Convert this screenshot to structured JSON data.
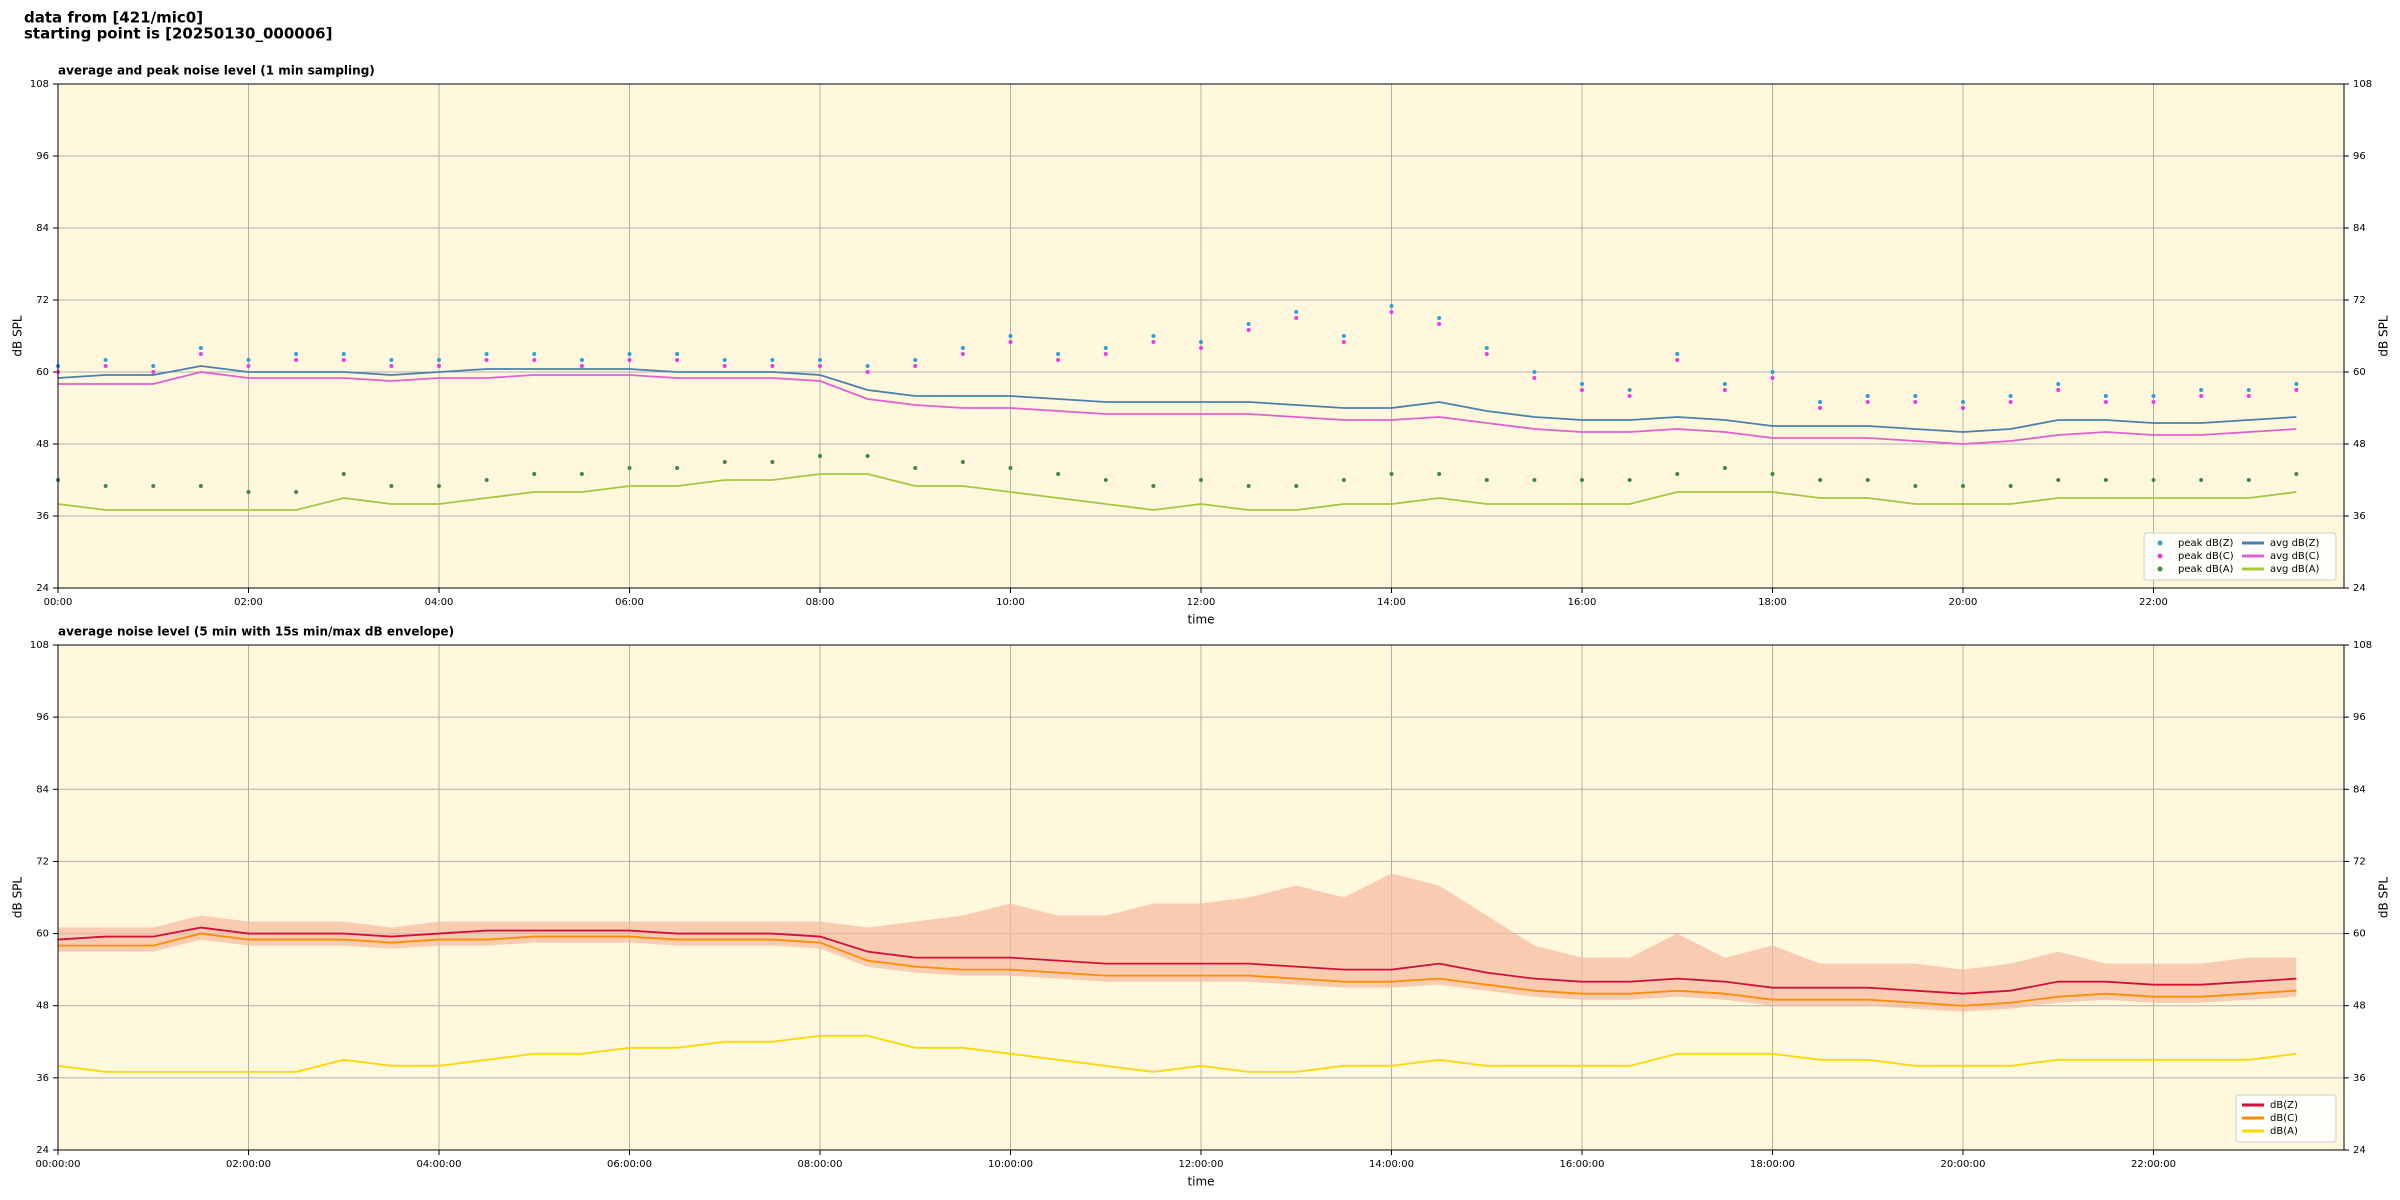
{
  "header": {
    "lines": [
      "data from [421/mic0]",
      "starting point is [20250130_000006]"
    ]
  },
  "chart_data": [
    {
      "type": "line",
      "title": "average and peak noise level (1 min sampling)",
      "xlabel": "time",
      "ylabel": "dB SPL",
      "background": "#fff8dc",
      "grid": true,
      "legend": "lower right",
      "legend_columns": 2,
      "xlim": [
        "00:00",
        "24:00"
      ],
      "xticks": [
        "00:00",
        "02:00",
        "04:00",
        "06:00",
        "08:00",
        "10:00",
        "12:00",
        "14:00",
        "16:00",
        "18:00",
        "20:00",
        "22:00"
      ],
      "ylim": [
        24,
        108
      ],
      "yticks": [
        24,
        36,
        48,
        60,
        72,
        84,
        96,
        108
      ],
      "x": [
        "00:00",
        "00:30",
        "01:00",
        "01:30",
        "02:00",
        "02:30",
        "03:00",
        "03:30",
        "04:00",
        "04:30",
        "05:00",
        "05:30",
        "06:00",
        "06:30",
        "07:00",
        "07:30",
        "08:00",
        "08:30",
        "09:00",
        "09:30",
        "10:00",
        "10:30",
        "11:00",
        "11:30",
        "12:00",
        "12:30",
        "13:00",
        "13:30",
        "14:00",
        "14:30",
        "15:00",
        "15:30",
        "16:00",
        "16:30",
        "17:00",
        "17:30",
        "18:00",
        "18:30",
        "19:00",
        "19:30",
        "20:00",
        "20:30",
        "21:00",
        "21:30",
        "22:00",
        "22:30",
        "23:00",
        "23:30"
      ],
      "series": [
        {
          "name": "peak dB(Z)",
          "kind": "scatter",
          "color": "#2e9fd8",
          "values": [
            61,
            62,
            61,
            64,
            62,
            63,
            63,
            62,
            62,
            63,
            63,
            62,
            63,
            63,
            62,
            62,
            62,
            61,
            62,
            64,
            66,
            63,
            64,
            66,
            65,
            68,
            70,
            66,
            71,
            69,
            64,
            60,
            58,
            57,
            63,
            58,
            60,
            55,
            56,
            56,
            55,
            56,
            58,
            56,
            56,
            57,
            57,
            58
          ]
        },
        {
          "name": "peak dB(C)",
          "kind": "scatter",
          "color": "#e83ee0",
          "values": [
            60,
            61,
            60,
            63,
            61,
            62,
            62,
            61,
            61,
            62,
            62,
            61,
            62,
            62,
            61,
            61,
            61,
            60,
            61,
            63,
            65,
            62,
            63,
            65,
            64,
            67,
            69,
            65,
            70,
            68,
            63,
            59,
            57,
            56,
            62,
            57,
            59,
            54,
            55,
            55,
            54,
            55,
            57,
            55,
            55,
            56,
            56,
            57
          ]
        },
        {
          "name": "peak dB(A)",
          "kind": "scatter",
          "color": "#3c8c3c",
          "values": [
            42,
            41,
            41,
            41,
            40,
            40,
            43,
            41,
            41,
            42,
            43,
            43,
            44,
            44,
            45,
            45,
            46,
            46,
            44,
            45,
            44,
            43,
            42,
            41,
            42,
            41,
            41,
            42,
            43,
            43,
            42,
            42,
            42,
            42,
            43,
            44,
            43,
            42,
            42,
            41,
            41,
            41,
            42,
            42,
            42,
            42,
            42,
            43
          ]
        },
        {
          "name": "avg dB(Z)",
          "kind": "line",
          "color": "#4a7fb0",
          "values": [
            59,
            59.5,
            59.5,
            61,
            60,
            60,
            60,
            59.5,
            60,
            60.5,
            60.5,
            60.5,
            60.5,
            60,
            60,
            60,
            59.5,
            57,
            56,
            56,
            56,
            55.5,
            55,
            55,
            55,
            55,
            54.5,
            54,
            54,
            55,
            53.5,
            52.5,
            52,
            52,
            52.5,
            52,
            51,
            51,
            51,
            50.5,
            50,
            50.5,
            52,
            52,
            51.5,
            51.5,
            52,
            52.5
          ]
        },
        {
          "name": "avg dB(C)",
          "kind": "line",
          "color": "#e060d0",
          "values": [
            58,
            58,
            58,
            60,
            59,
            59,
            59,
            58.5,
            59,
            59,
            59.5,
            59.5,
            59.5,
            59,
            59,
            59,
            58.5,
            55.5,
            54.5,
            54,
            54,
            53.5,
            53,
            53,
            53,
            53,
            52.5,
            52,
            52,
            52.5,
            51.5,
            50.5,
            50,
            50,
            50.5,
            50,
            49,
            49,
            49,
            48.5,
            48,
            48.5,
            49.5,
            50,
            49.5,
            49.5,
            50,
            50.5
          ]
        },
        {
          "name": "avg dB(A)",
          "kind": "line",
          "color": "#a4c93e",
          "values": [
            38,
            37,
            37,
            37,
            37,
            37,
            39,
            38,
            38,
            39,
            40,
            40,
            41,
            41,
            42,
            42,
            43,
            43,
            41,
            41,
            40,
            39,
            38,
            37,
            38,
            37,
            37,
            38,
            38,
            39,
            38,
            38,
            38,
            38,
            40,
            40,
            40,
            39,
            39,
            38,
            38,
            38,
            39,
            39,
            39,
            39,
            39,
            40
          ]
        }
      ]
    },
    {
      "type": "line",
      "title": "average noise level (5 min with 15s min/max dB envelope)",
      "xlabel": "time",
      "ylabel": "dB SPL",
      "background": "#fff8dc",
      "grid": true,
      "legend": "lower right",
      "legend_columns": 1,
      "xlim": [
        "00:00:00",
        "24:00:00"
      ],
      "xticks": [
        "00:00:00",
        "02:00:00",
        "04:00:00",
        "06:00:00",
        "08:00:00",
        "10:00:00",
        "12:00:00",
        "14:00:00",
        "16:00:00",
        "18:00:00",
        "20:00:00",
        "22:00:00"
      ],
      "ylim": [
        24,
        108
      ],
      "yticks": [
        24,
        36,
        48,
        60,
        72,
        84,
        96,
        108
      ],
      "x": [
        "00:00:00",
        "00:30:00",
        "01:00:00",
        "01:30:00",
        "02:00:00",
        "02:30:00",
        "03:00:00",
        "03:30:00",
        "04:00:00",
        "04:30:00",
        "05:00:00",
        "05:30:00",
        "06:00:00",
        "06:30:00",
        "07:00:00",
        "07:30:00",
        "08:00:00",
        "08:30:00",
        "09:00:00",
        "09:30:00",
        "10:00:00",
        "10:30:00",
        "11:00:00",
        "11:30:00",
        "12:00:00",
        "12:30:00",
        "13:00:00",
        "13:30:00",
        "14:00:00",
        "14:30:00",
        "15:00:00",
        "15:30:00",
        "16:00:00",
        "16:30:00",
        "17:00:00",
        "17:30:00",
        "18:00:00",
        "18:30:00",
        "19:00:00",
        "19:30:00",
        "20:00:00",
        "20:30:00",
        "21:00:00",
        "21:30:00",
        "22:00:00",
        "22:30:00",
        "23:00:00",
        "23:30:00"
      ],
      "envelope": {
        "color": "#f6b9a0",
        "upper": [
          61,
          61,
          61,
          63,
          62,
          62,
          62,
          61,
          62,
          62,
          62,
          62,
          62,
          62,
          62,
          62,
          62,
          61,
          62,
          63,
          65,
          63,
          63,
          65,
          65,
          66,
          68,
          66,
          70,
          68,
          63,
          58,
          56,
          56,
          60,
          56,
          58,
          55,
          55,
          55,
          54,
          55,
          57,
          55,
          55,
          55,
          56,
          56
        ],
        "lower": [
          57,
          57,
          57,
          59,
          58,
          58,
          58,
          57.5,
          58,
          58,
          58.5,
          58.5,
          58.5,
          58,
          58,
          58,
          57.5,
          54.5,
          53.5,
          53,
          53,
          52.5,
          52,
          52,
          52,
          52,
          51.5,
          51,
          51,
          51.5,
          50.5,
          49.5,
          49,
          49,
          49.5,
          49,
          48,
          48,
          48,
          47.5,
          47,
          47.5,
          48.5,
          49,
          48.5,
          48.5,
          49,
          49.5
        ]
      },
      "series": [
        {
          "name": "dB(Z)",
          "kind": "line",
          "color": "#d0103a",
          "values": [
            59,
            59.5,
            59.5,
            61,
            60,
            60,
            60,
            59.5,
            60,
            60.5,
            60.5,
            60.5,
            60.5,
            60,
            60,
            60,
            59.5,
            57,
            56,
            56,
            56,
            55.5,
            55,
            55,
            55,
            55,
            54.5,
            54,
            54,
            55,
            53.5,
            52.5,
            52,
            52,
            52.5,
            52,
            51,
            51,
            51,
            50.5,
            50,
            50.5,
            52,
            52,
            51.5,
            51.5,
            52,
            52.5
          ]
        },
        {
          "name": "dB(C)",
          "kind": "line",
          "color": "#ff8c00",
          "values": [
            58,
            58,
            58,
            60,
            59,
            59,
            59,
            58.5,
            59,
            59,
            59.5,
            59.5,
            59.5,
            59,
            59,
            59,
            58.5,
            55.5,
            54.5,
            54,
            54,
            53.5,
            53,
            53,
            53,
            53,
            52.5,
            52,
            52,
            52.5,
            51.5,
            50.5,
            50,
            50,
            50.5,
            50,
            49,
            49,
            49,
            48.5,
            48,
            48.5,
            49.5,
            50,
            49.5,
            49.5,
            50,
            50.5
          ]
        },
        {
          "name": "dB(A)",
          "kind": "line",
          "color": "#ffd700",
          "values": [
            38,
            37,
            37,
            37,
            37,
            37,
            39,
            38,
            38,
            39,
            40,
            40,
            41,
            41,
            42,
            42,
            43,
            43,
            41,
            41,
            40,
            39,
            38,
            37,
            38,
            37,
            37,
            38,
            38,
            39,
            38,
            38,
            38,
            38,
            40,
            40,
            40,
            39,
            39,
            38,
            38,
            38,
            39,
            39,
            39,
            39,
            39,
            40
          ]
        }
      ]
    }
  ]
}
